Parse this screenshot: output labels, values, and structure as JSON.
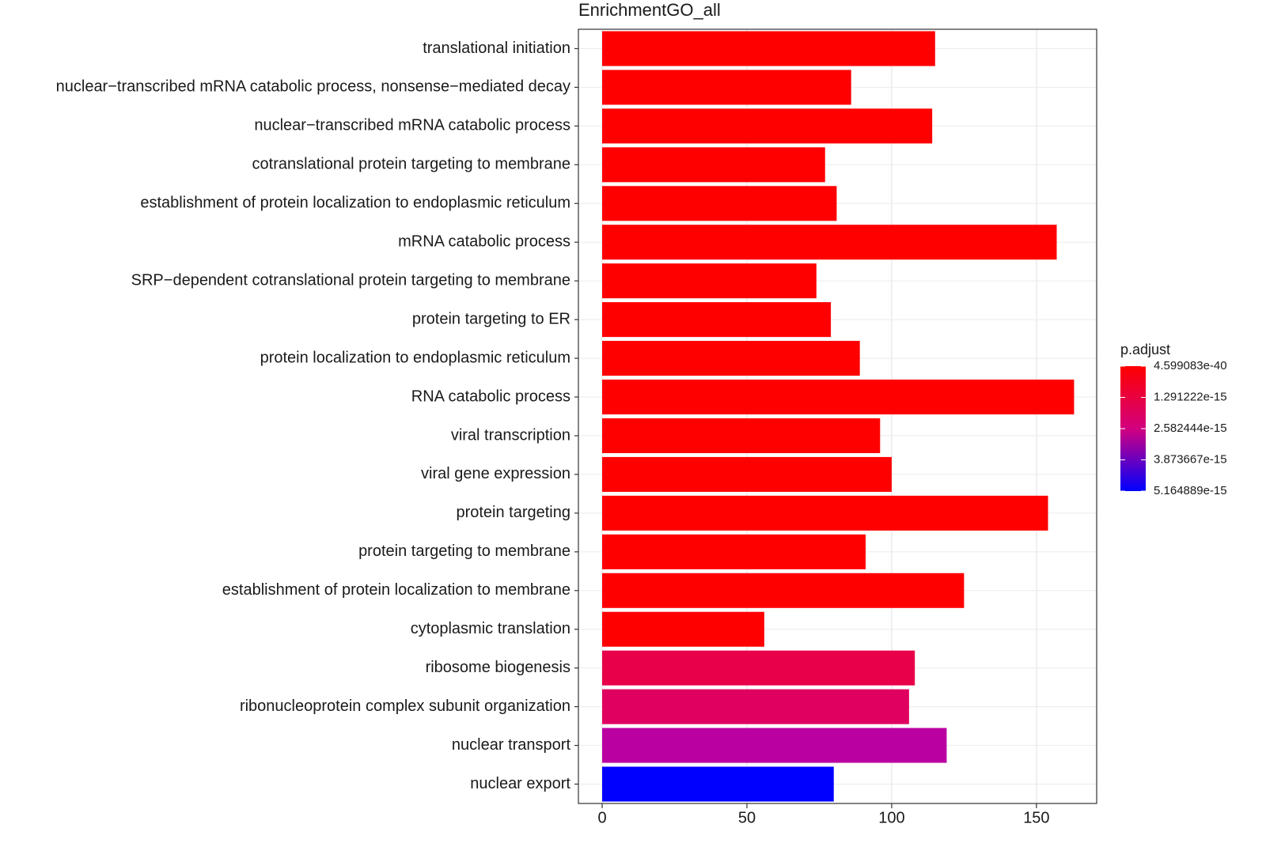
{
  "chart_data": {
    "type": "bar",
    "orientation": "horizontal",
    "title": "EnrichmentGO_all",
    "categories": [
      "translational initiation",
      "nuclear−transcribed mRNA catabolic process, nonsense−mediated decay",
      "nuclear−transcribed mRNA catabolic process",
      "cotranslational protein targeting to membrane",
      "establishment of protein localization to endoplasmic reticulum",
      "mRNA catabolic process",
      "SRP−dependent cotranslational protein targeting to membrane",
      "protein targeting to ER",
      "protein localization to endoplasmic reticulum",
      "RNA catabolic process",
      "viral transcription",
      "viral gene expression",
      "protein targeting",
      "protein targeting to membrane",
      "establishment of protein localization to membrane",
      "cytoplasmic translation",
      "ribosome biogenesis",
      "ribonucleoprotein complex subunit organization",
      "nuclear transport",
      "nuclear export"
    ],
    "values": [
      115,
      86,
      114,
      77,
      81,
      157,
      74,
      79,
      89,
      163,
      96,
      100,
      154,
      91,
      125,
      56,
      108,
      106,
      119,
      80
    ],
    "colors": [
      "#ff0000",
      "#ff0000",
      "#ff0000",
      "#ff0000",
      "#ff0000",
      "#ff0000",
      "#ff0000",
      "#ff0000",
      "#ff0000",
      "#ff0000",
      "#ff0000",
      "#ff0000",
      "#ff0000",
      "#ff0000",
      "#ff0000",
      "#ff0000",
      "#e8004a",
      "#e0005f",
      "#bb00a2",
      "#0000ff"
    ],
    "xlim": [
      -8.2,
      170.8
    ],
    "xticks": [
      0,
      50,
      100,
      150
    ],
    "grid": true,
    "legend": {
      "title": "p.adjust",
      "low_color": "#ff0000",
      "high_color": "#0000ff",
      "lim": [
        4.599083e-40,
        5.164889e-15
      ],
      "ticks": [
        {
          "value": 4.599083e-40,
          "label": "4.599083e-40"
        },
        {
          "value": 1.291222e-15,
          "label": "1.291222e-15"
        },
        {
          "value": 2.582444e-15,
          "label": "2.582444e-15"
        },
        {
          "value": 3.873667e-15,
          "label": "3.873667e-15"
        },
        {
          "value": 5.164889e-15,
          "label": "5.164889e-15"
        }
      ]
    }
  }
}
